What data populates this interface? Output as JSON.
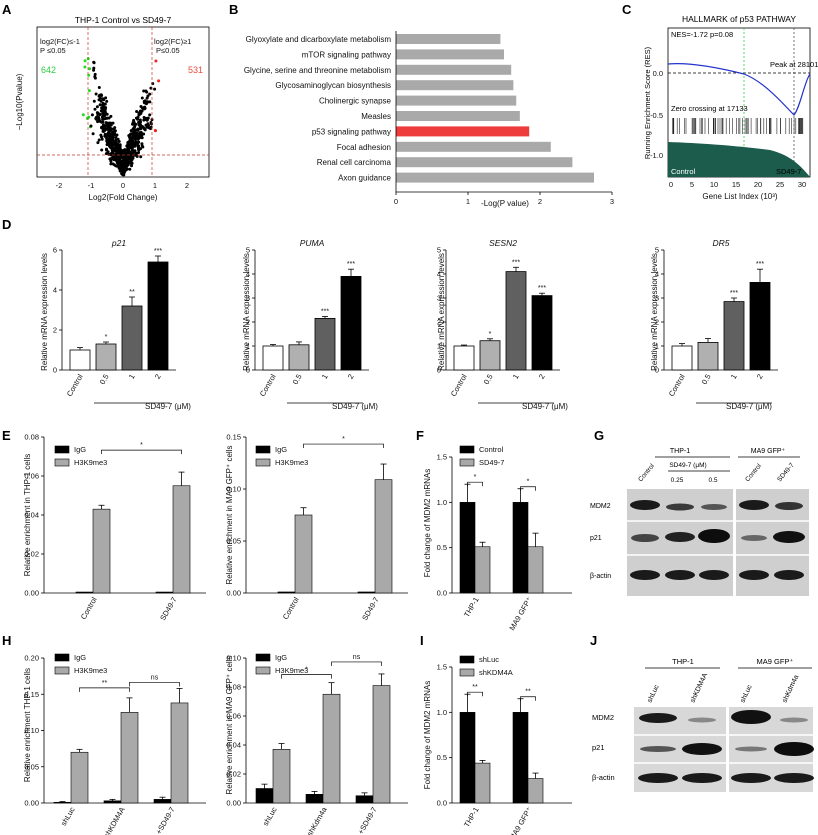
{
  "panels": {
    "A": {
      "label": "A",
      "title": "THP-1 Control vs SD49-7",
      "left_note_1": "log2(FC)≤-1",
      "left_note_2": "P ≤0.05",
      "right_note_1": "log2(FC)≥1",
      "right_note_2": "P≤0.05",
      "down_count": "642",
      "up_count": "531",
      "xlabel": "Log2(Fold Change)",
      "ylabel": "−Log10(Pvalue)",
      "x_ticks": [
        "-2",
        "-1",
        "0",
        "1",
        "2"
      ]
    },
    "B": {
      "label": "B",
      "xlabel": "-Log(P value)",
      "x_ticks": [
        "0",
        "1",
        "2",
        "3"
      ]
    },
    "C": {
      "label": "C",
      "title": "HALLMARK of p53 PATHWAY",
      "nes": "NES=-1.72 p=0.08",
      "peak": "Peak at 28101",
      "zero_cross": "Zero crossing at 17133",
      "left_group": "Control",
      "right_group": "SD49-7",
      "xlabel": "Gene List Index (10³)",
      "ylabel": "Running Enrichment Score (RES)",
      "y_ticks": [
        "0.0",
        "-0.5",
        "-1.0"
      ],
      "x_ticks": [
        "0",
        "5",
        "10",
        "15",
        "20",
        "25",
        "30"
      ]
    },
    "D": {
      "label": "D",
      "ylabel": "Relative mRNA expression levels",
      "group_label": "SD49-7 (μM)",
      "categories": [
        "Control",
        "0.5",
        "1",
        "2"
      ]
    },
    "E": {
      "label": "E",
      "ylabel_left": "Relative enrichment in THP-1 cells",
      "ylabel_right": "Relative enrichment in MA9 GFP⁺ cells",
      "legend": [
        "IgG",
        "H3K9me3"
      ],
      "categories": [
        "Control",
        "SD49-7"
      ]
    },
    "F": {
      "label": "F",
      "ylabel": "Fold change of MDM2 mRNAs",
      "legend": [
        "Control",
        "SD49-7"
      ],
      "categories": [
        "THP-1",
        "MA9 GFP⁺"
      ]
    },
    "G": {
      "label": "G",
      "group_1": "THP-1",
      "group_2": "MA9 GFP⁺",
      "dose_label": "SD49-7 (μM)",
      "lanes": [
        "Control",
        "0.25",
        "0.5",
        "Control",
        "SD49-7"
      ],
      "rows": [
        "MDM2",
        "p21",
        "β-actin"
      ]
    },
    "H": {
      "label": "H",
      "ylabel_left": "Relative enrichment THP-1 cells",
      "ylabel_right": "Relative enrichment in MA9 GFP⁺ cells",
      "legend": [
        "IgG",
        "H3K9me3"
      ],
      "categories_left": [
        "shLuc",
        "shKDM4A",
        "shKDM4A\n+SD49-7"
      ],
      "categories_right": [
        "shLuc",
        "shKdm4a",
        "shKdm4a\n+SD49-7"
      ]
    },
    "I": {
      "label": "I",
      "ylabel": "Fold change of MDM2 mRNAs",
      "legend": [
        "shLuc",
        "shKDM4A"
      ],
      "categories": [
        "THP-1",
        "MA9 GFP⁺"
      ]
    },
    "J": {
      "label": "J",
      "group_1": "THP-1",
      "group_2": "MA9 GFP⁺",
      "lanes": [
        "shLuc",
        "shKDM4A",
        "shLuc",
        "shKdm4a"
      ],
      "rows": [
        "MDM2",
        "p21",
        "β-actin"
      ]
    }
  },
  "chart_data": [
    {
      "id": "B",
      "type": "bar",
      "orientation": "horizontal",
      "categories": [
        "Glyoxylate and dicarboxylate metabolism",
        "mTOR signaling pathway",
        "Glycine, serine and threonine metabolism",
        "Glycosaminoglycan biosynthesis",
        "Cholinergic synapse",
        "Measles",
        "p53 signaling pathway",
        "Focal adhesion",
        "Renal cell carcinoma",
        "Axon guidance"
      ],
      "values": [
        1.45,
        1.5,
        1.6,
        1.63,
        1.67,
        1.72,
        1.85,
        2.15,
        2.45,
        2.75
      ],
      "highlight": "p53 signaling pathway",
      "xlim": [
        0,
        3
      ],
      "xlabel": "-Log(P value)"
    },
    {
      "id": "D1",
      "type": "bar",
      "title": "p21",
      "categories": [
        "Control",
        "0.5",
        "1",
        "2"
      ],
      "values": [
        1.0,
        1.3,
        3.2,
        5.4
      ],
      "errors": [
        0.12,
        0.1,
        0.45,
        0.3
      ],
      "significance": [
        "",
        "*",
        "**",
        "***"
      ],
      "ylim": [
        0,
        6
      ],
      "y_ticks": [
        "0",
        "2",
        "4",
        "6"
      ]
    },
    {
      "id": "D2",
      "type": "bar",
      "title": "PUMA",
      "categories": [
        "Control",
        "0.5",
        "1",
        "2"
      ],
      "values": [
        1.0,
        1.05,
        2.15,
        3.9
      ],
      "errors": [
        0.06,
        0.12,
        0.08,
        0.3
      ],
      "significance": [
        "",
        "",
        "***",
        "***"
      ],
      "ylim": [
        0,
        5
      ],
      "y_ticks": [
        "0",
        "1",
        "2",
        "3",
        "4",
        "5"
      ]
    },
    {
      "id": "D3",
      "type": "bar",
      "title": "SESN2",
      "categories": [
        "Control",
        "0.5",
        "1",
        "2"
      ],
      "values": [
        1.0,
        1.22,
        4.1,
        3.1
      ],
      "errors": [
        0.04,
        0.08,
        0.18,
        0.1
      ],
      "significance": [
        "",
        "*",
        "***",
        "***"
      ],
      "ylim": [
        0,
        5
      ],
      "y_ticks": [
        "0",
        "1",
        "2",
        "3",
        "4",
        "5"
      ]
    },
    {
      "id": "D4",
      "type": "bar",
      "title": "DR5",
      "categories": [
        "Control",
        "0.5",
        "1",
        "2"
      ],
      "values": [
        1.0,
        1.15,
        2.85,
        3.65
      ],
      "errors": [
        0.1,
        0.16,
        0.15,
        0.55
      ],
      "significance": [
        "",
        "",
        "***",
        "***"
      ],
      "ylim": [
        0,
        5
      ],
      "y_ticks": [
        "0",
        "1",
        "2",
        "3",
        "4",
        "5"
      ]
    },
    {
      "id": "E1",
      "type": "bar",
      "categories": [
        "Control",
        "SD49-7"
      ],
      "series": [
        {
          "name": "IgG",
          "values": [
            0.0005,
            0.0005
          ],
          "errors": [
            0,
            0
          ]
        },
        {
          "name": "H3K9me3",
          "values": [
            0.043,
            0.055
          ],
          "errors": [
            0.002,
            0.007
          ]
        }
      ],
      "ylim": [
        0,
        0.08
      ],
      "y_ticks": [
        "0.00",
        "0.02",
        "0.04",
        "0.06",
        "0.08"
      ],
      "brackets": [
        {
          "text": "*"
        }
      ]
    },
    {
      "id": "E2",
      "type": "bar",
      "categories": [
        "Control",
        "SD49-7"
      ],
      "series": [
        {
          "name": "IgG",
          "values": [
            0.001,
            0.001
          ],
          "errors": [
            0,
            0
          ]
        },
        {
          "name": "H3K9me3",
          "values": [
            0.075,
            0.109
          ],
          "errors": [
            0.007,
            0.015
          ]
        }
      ],
      "ylim": [
        0,
        0.15
      ],
      "y_ticks": [
        "0.00",
        "0.05",
        "0.10",
        "0.15"
      ],
      "brackets": [
        {
          "text": "*"
        }
      ]
    },
    {
      "id": "F",
      "type": "bar",
      "categories": [
        "THP-1",
        "MA9 GFP⁺"
      ],
      "series": [
        {
          "name": "Control",
          "values": [
            1.0,
            1.0
          ],
          "errors": [
            0.2,
            0.15
          ]
        },
        {
          "name": "SD49-7",
          "values": [
            0.51,
            0.51
          ],
          "errors": [
            0.05,
            0.15
          ]
        }
      ],
      "ylim": [
        0,
        1.5
      ],
      "y_ticks": [
        "0.0",
        "0.5",
        "1.0",
        "1.5"
      ],
      "brackets": [
        {
          "text": "*"
        },
        {
          "text": "*"
        }
      ]
    },
    {
      "id": "H1",
      "type": "bar",
      "categories": [
        "shLuc",
        "shKDM4A",
        "shKDM4A +SD49-7"
      ],
      "series": [
        {
          "name": "IgG",
          "values": [
            0.001,
            0.003,
            0.005
          ],
          "errors": [
            0.001,
            0.002,
            0.003
          ]
        },
        {
          "name": "H3K9me3",
          "values": [
            0.07,
            0.125,
            0.138
          ],
          "errors": [
            0.004,
            0.02,
            0.02
          ]
        }
      ],
      "ylim": [
        0,
        0.2
      ],
      "y_ticks": [
        "0.00",
        "0.05",
        "0.10",
        "0.15",
        "0.20"
      ],
      "brackets": [
        {
          "text": "**"
        },
        {
          "text": "ns"
        }
      ]
    },
    {
      "id": "H2",
      "type": "bar",
      "categories": [
        "shLuc",
        "shKdm4a",
        "shKdm4a +SD49-7"
      ],
      "series": [
        {
          "name": "IgG",
          "values": [
            0.01,
            0.006,
            0.005
          ],
          "errors": [
            0.003,
            0.002,
            0.002
          ]
        },
        {
          "name": "H3K9me3",
          "values": [
            0.037,
            0.075,
            0.081
          ],
          "errors": [
            0.004,
            0.008,
            0.008
          ]
        }
      ],
      "ylim": [
        0,
        0.1
      ],
      "y_ticks": [
        "0.00",
        "0.02",
        "0.04",
        "0.06",
        "0.08",
        "0.10"
      ],
      "brackets": [
        {
          "text": "*"
        },
        {
          "text": "ns"
        }
      ]
    },
    {
      "id": "I",
      "type": "bar",
      "categories": [
        "THP-1",
        "MA9 GFP⁺"
      ],
      "series": [
        {
          "name": "shLuc",
          "values": [
            1.0,
            1.0
          ],
          "errors": [
            0.2,
            0.15
          ]
        },
        {
          "name": "shKDM4A",
          "values": [
            0.44,
            0.27
          ],
          "errors": [
            0.03,
            0.06
          ]
        }
      ],
      "ylim": [
        0,
        1.5
      ],
      "y_ticks": [
        "0.0",
        "0.5",
        "1.0",
        "1.5"
      ],
      "brackets": [
        {
          "text": "**"
        },
        {
          "text": "**"
        }
      ]
    }
  ]
}
